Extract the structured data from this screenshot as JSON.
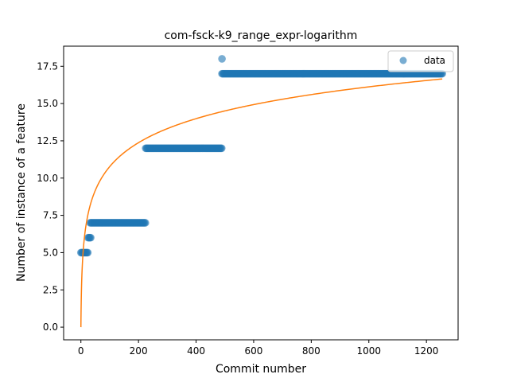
{
  "chart_data": {
    "type": "scatter",
    "title": "com-fsck-k9_range_expr-logarithm",
    "xlabel": "Commit number",
    "ylabel": "Number of instance of a feature",
    "xlim": [
      -60,
      1310
    ],
    "ylim": [
      -0.85,
      18.85
    ],
    "xticks": [
      0,
      200,
      400,
      600,
      800,
      1000,
      1200
    ],
    "yticks": [
      0.0,
      2.5,
      5.0,
      7.5,
      10.0,
      12.5,
      15.0,
      17.5
    ],
    "ytick_labels": [
      "0.0",
      "2.5",
      "5.0",
      "7.5",
      "10.0",
      "12.5",
      "15.0",
      "17.5"
    ],
    "legend": {
      "position": "top-right",
      "entries": [
        "data"
      ]
    },
    "colors": {
      "data": "#1f77b4",
      "fit": "#ff7f0e"
    },
    "series": [
      {
        "name": "data",
        "kind": "scatter",
        "segments": [
          {
            "x_start": 0,
            "x_end": 25,
            "y": 5
          },
          {
            "x_start": 25,
            "x_end": 35,
            "y": 6
          },
          {
            "x_start": 32,
            "x_end": 225,
            "y": 7
          },
          {
            "x_start": 225,
            "x_end": 490,
            "y": 12
          },
          {
            "x_start": 490,
            "x_end": 1255,
            "y": 17
          }
        ],
        "points": [
          {
            "x": 490,
            "y": 18
          }
        ]
      },
      {
        "kind": "line",
        "model": "logarithmic",
        "x_range": [
          0,
          1255
        ],
        "y_at_end": 16.65
      }
    ]
  }
}
